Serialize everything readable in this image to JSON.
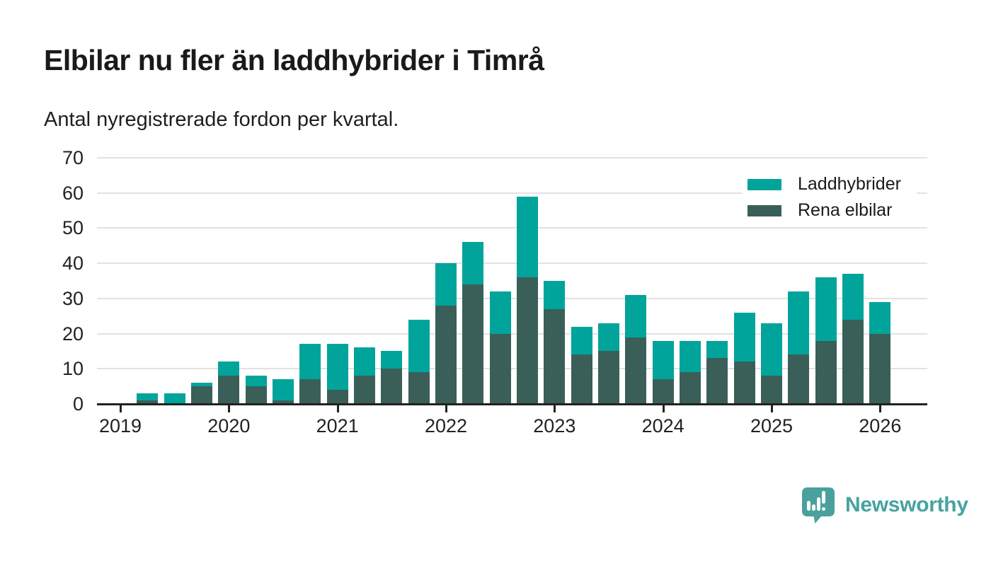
{
  "chart_data": {
    "type": "bar",
    "stacked": true,
    "title": "Elbilar nu fler än laddhybrider i Timrå",
    "subtitle": "Antal nyregistrerade fordon per kvartal.",
    "categories": [
      "2019 Q2",
      "2019 Q3",
      "2019 Q4",
      "2020 Q1",
      "2020 Q2",
      "2020 Q3",
      "2020 Q4",
      "2021 Q1",
      "2021 Q2",
      "2021 Q3",
      "2021 Q4",
      "2022 Q1",
      "2022 Q2",
      "2022 Q3",
      "2022 Q4",
      "2023 Q1",
      "2023 Q2",
      "2023 Q3",
      "2023 Q4",
      "2024 Q1",
      "2024 Q2",
      "2024 Q3",
      "2024 Q4",
      "2025 Q1",
      "2025 Q2",
      "2025 Q3",
      "2025 Q4",
      "2026 Q1"
    ],
    "series": [
      {
        "name": "Laddhybrider",
        "color": "#00a49b",
        "values": [
          2,
          3,
          1,
          4,
          3,
          6,
          10,
          13,
          8,
          5,
          15,
          12,
          12,
          12,
          23,
          8,
          8,
          8,
          12,
          11,
          9,
          5,
          14,
          15,
          18,
          18,
          13,
          9
        ]
      },
      {
        "name": "Rena elbilar",
        "color": "#3a5f58",
        "values": [
          1,
          0,
          5,
          8,
          5,
          1,
          7,
          4,
          8,
          10,
          9,
          28,
          34,
          20,
          36,
          27,
          14,
          15,
          19,
          7,
          9,
          13,
          12,
          8,
          14,
          18,
          24,
          20
        ]
      }
    ],
    "stack_bottom_series": "Rena elbilar",
    "totals": [
      3,
      3,
      6,
      12,
      8,
      7,
      17,
      17,
      16,
      15,
      24,
      40,
      46,
      32,
      59,
      35,
      22,
      23,
      31,
      18,
      18,
      18,
      26,
      23,
      32,
      36,
      37,
      29
    ],
    "ylim": [
      0,
      70
    ],
    "y_ticks": [
      0,
      10,
      20,
      30,
      40,
      50,
      60,
      70
    ],
    "x_tick_labels": [
      "2019",
      "2020",
      "2021",
      "2022",
      "2023",
      "2024",
      "2025",
      "2026"
    ],
    "x_start_offset_quarters": 1,
    "grid": true,
    "legend_position": "top-right",
    "gridline_color": "#e2e2e2",
    "axis_color": "#222222",
    "text_color": "#1a1a1a"
  },
  "footer": {
    "brand": "Newsworthy",
    "brand_color": "#45a3a0",
    "badge_color": "#4aa09c",
    "logo_icon": "bar-chart-speech-bubble"
  }
}
